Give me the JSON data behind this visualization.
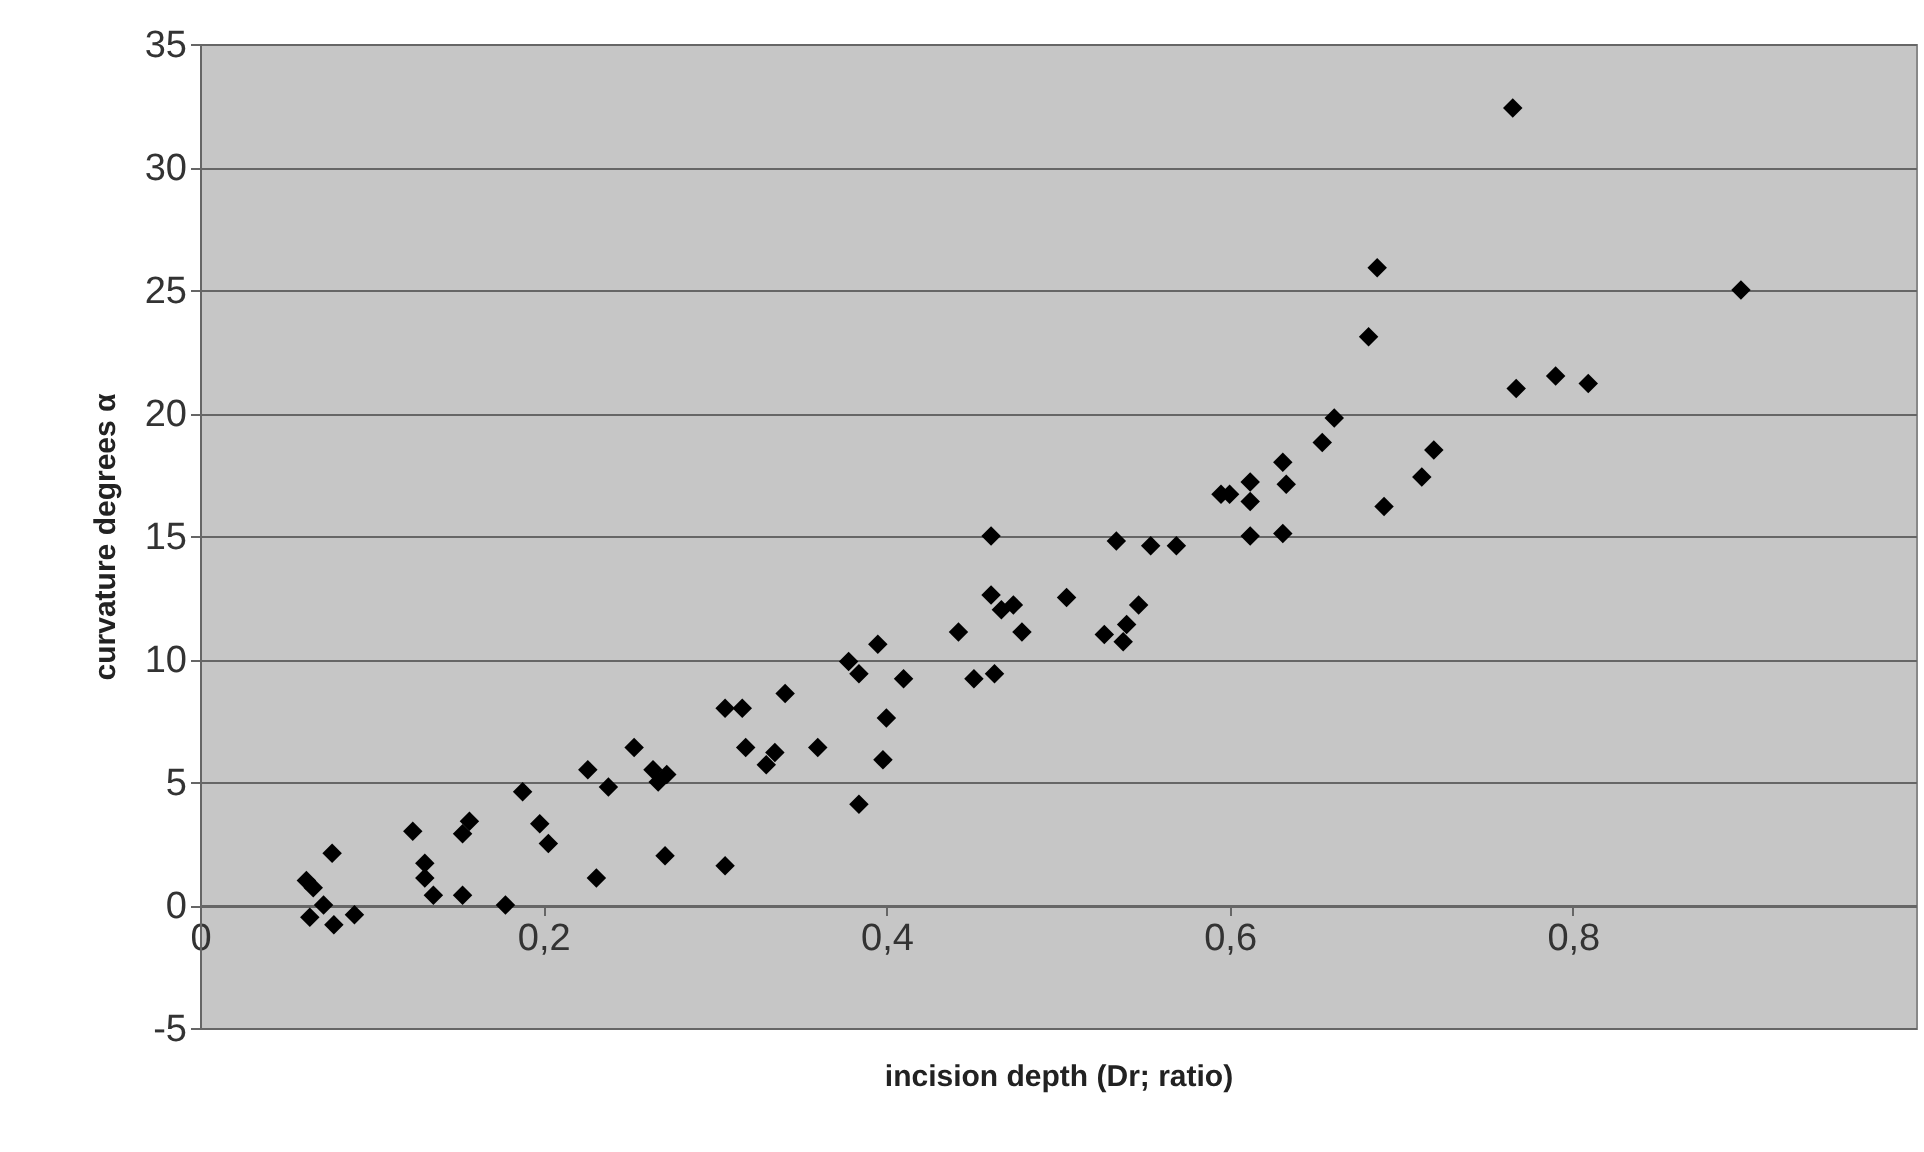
{
  "chart_data": {
    "type": "scatter",
    "xlabel": "incision depth (Dr; ratio)",
    "ylabel": "curvature degrees  α",
    "xlim": [
      0,
      1
    ],
    "xticks": [
      0,
      {
        "value": 0.2,
        "label": "0,2"
      },
      {
        "value": 0.4,
        "label": "0,4"
      },
      {
        "value": 0.6,
        "label": "0,6"
      },
      {
        "value": 0.8,
        "label": "0,8"
      }
    ],
    "ylim": [
      -5,
      35
    ],
    "yticks": [
      -5,
      0,
      5,
      10,
      15,
      20,
      25,
      30,
      35
    ],
    "grid": "y",
    "marker": "diamond",
    "series": [
      {
        "color": "#000000",
        "x": [
          0.062,
          0.066,
          0.064,
          0.072,
          0.077,
          0.078,
          0.09,
          0.124,
          0.131,
          0.131,
          0.136,
          0.153,
          0.153,
          0.157,
          0.178,
          0.188,
          0.198,
          0.203,
          0.226,
          0.231,
          0.238,
          0.253,
          0.264,
          0.267,
          0.272,
          0.271,
          0.306,
          0.306,
          0.316,
          0.318,
          0.33,
          0.335,
          0.341,
          0.36,
          0.378,
          0.384,
          0.384,
          0.395,
          0.398,
          0.4,
          0.41,
          0.442,
          0.451,
          0.463,
          0.461,
          0.461,
          0.467,
          0.474,
          0.479,
          0.505,
          0.527,
          0.538,
          0.54,
          0.547,
          0.534,
          0.554,
          0.569,
          0.595,
          0.6,
          0.612,
          0.612,
          0.612,
          0.631,
          0.633,
          0.631,
          0.654,
          0.661,
          0.69,
          0.681,
          0.686,
          0.712,
          0.719,
          0.765,
          0.767,
          0.79,
          0.809,
          0.898
        ],
        "values": [
          1.0,
          0.7,
          -0.5,
          0.0,
          2.1,
          -0.8,
          -0.4,
          3.0,
          1.7,
          1.1,
          0.4,
          0.4,
          2.9,
          3.4,
          0.0,
          4.6,
          3.3,
          2.5,
          5.5,
          1.1,
          4.8,
          6.4,
          5.5,
          5.0,
          5.3,
          2.0,
          1.6,
          8.0,
          8.0,
          6.4,
          5.7,
          6.2,
          8.6,
          6.4,
          9.9,
          9.4,
          4.1,
          10.6,
          5.9,
          7.6,
          9.2,
          11.1,
          9.2,
          9.4,
          15.0,
          12.6,
          12.0,
          12.2,
          11.1,
          12.5,
          11.0,
          10.7,
          11.4,
          12.2,
          14.8,
          14.6,
          14.6,
          16.7,
          16.7,
          17.2,
          15.0,
          16.4,
          18.0,
          17.1,
          15.1,
          18.8,
          19.8,
          16.2,
          23.1,
          25.9,
          17.4,
          18.5,
          32.4,
          21.0,
          21.5,
          21.2,
          25.0
        ]
      }
    ]
  }
}
